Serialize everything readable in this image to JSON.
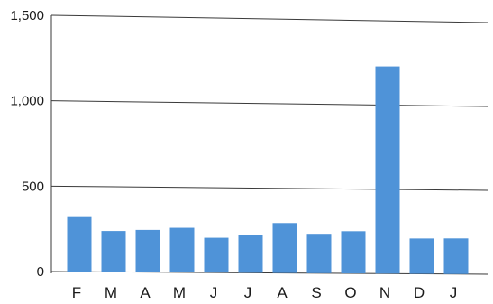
{
  "chart_data": {
    "type": "bar",
    "categories": [
      "F",
      "M",
      "A",
      "M",
      "J",
      "J",
      "A",
      "S",
      "O",
      "N",
      "D",
      "J"
    ],
    "values": [
      320,
      240,
      248,
      262,
      205,
      225,
      295,
      233,
      250,
      1230,
      210,
      212
    ],
    "ylim": [
      0,
      1500
    ],
    "yticks": [
      0,
      500,
      1000,
      1500
    ],
    "ytick_labels": [
      "0",
      "500",
      "1,000",
      "1,500"
    ],
    "grid": true,
    "bar_color": "#4f93d8",
    "grid_color": "#3a3a3a"
  }
}
